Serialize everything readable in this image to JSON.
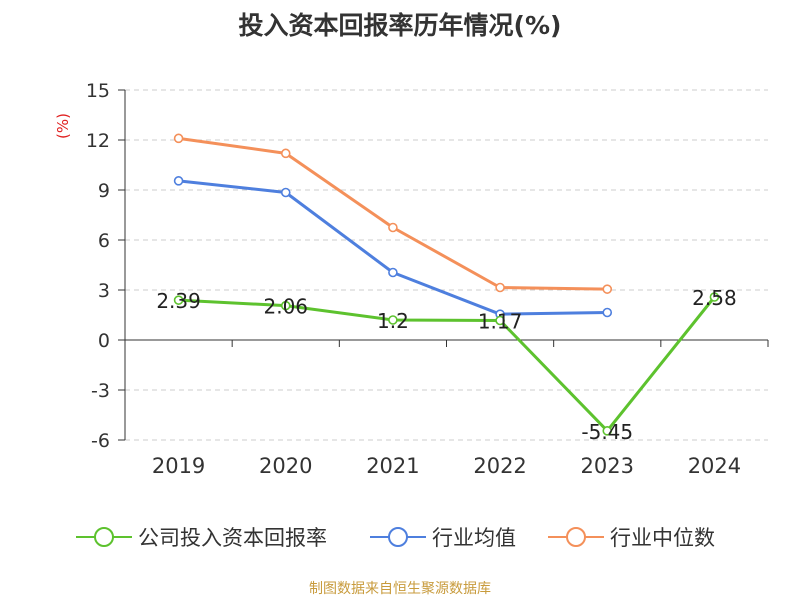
{
  "title": "投入资本回报率历年情况(%)",
  "source": "制图数据来自恒生聚源数据库",
  "chart_data": {
    "type": "line",
    "title": "投入资本回报率历年情况(%)",
    "ylabel": "(%)",
    "xlabel": "",
    "categories": [
      "2019",
      "2020",
      "2021",
      "2022",
      "2023",
      "2024"
    ],
    "ylim": [
      -6,
      15
    ],
    "yticks": [
      15,
      12,
      9,
      6,
      3,
      0,
      -3,
      -6
    ],
    "grid": true,
    "legend_position": "bottom",
    "series": [
      {
        "name": "公司投入资本回报率",
        "color": "#5dc22e",
        "values": [
          2.39,
          2.06,
          1.2,
          1.17,
          -5.45,
          2.58
        ],
        "labels": [
          "2.39",
          "2.06",
          "1.2",
          "1.17",
          "-5.45",
          "2.58"
        ]
      },
      {
        "name": "行业均值",
        "color": "#4e7fde",
        "values": [
          9.55,
          8.85,
          4.05,
          1.55,
          1.65,
          null
        ]
      },
      {
        "name": "行业中位数",
        "color": "#f4905a",
        "values": [
          12.1,
          11.2,
          6.75,
          3.15,
          3.05,
          null
        ]
      }
    ]
  }
}
